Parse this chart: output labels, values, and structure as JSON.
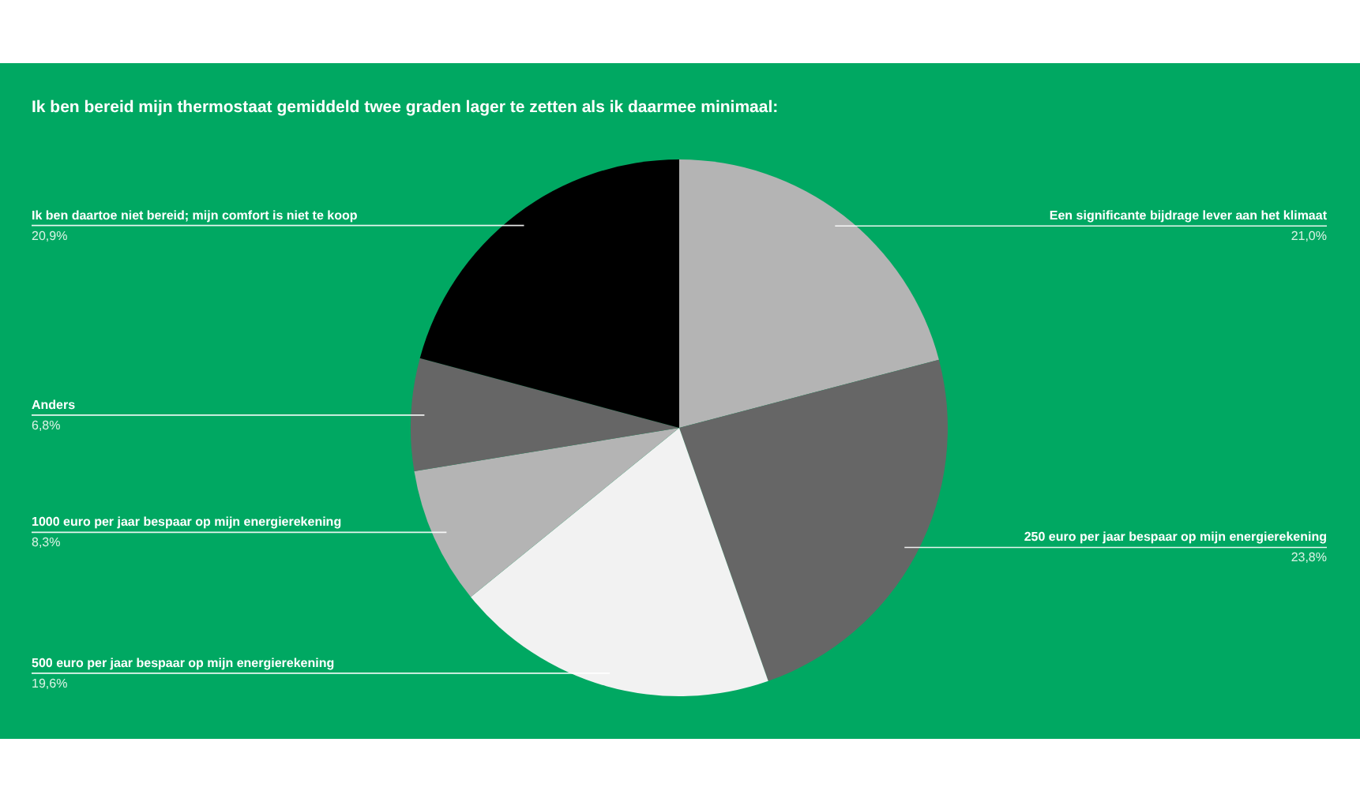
{
  "chart_data": {
    "type": "pie",
    "title": "Ik ben bereid mijn thermostaat gemiddeld twee graden lager te zetten als ik daarmee minimaal:",
    "categories": [
      "Een significante bijdrage lever aan het klimaat",
      "250 euro per jaar bespaar op mijn energierekening",
      "500 euro per jaar bespaar op mijn energierekening",
      "1000 euro per jaar bespaar op mijn energierekening",
      "Anders",
      "Ik ben daartoe niet bereid; mijn comfort is niet te koop"
    ],
    "values": [
      21.0,
      23.8,
      19.6,
      8.3,
      6.8,
      20.9
    ],
    "colors": [
      "#b4b4b4",
      "#666666",
      "#f2f2f2",
      "#b4b4b4",
      "#666666",
      "#000000"
    ],
    "value_labels": [
      "21,0%",
      "23,8%",
      "19,6%",
      "8,3%",
      "6,8%",
      "20,9%"
    ]
  }
}
